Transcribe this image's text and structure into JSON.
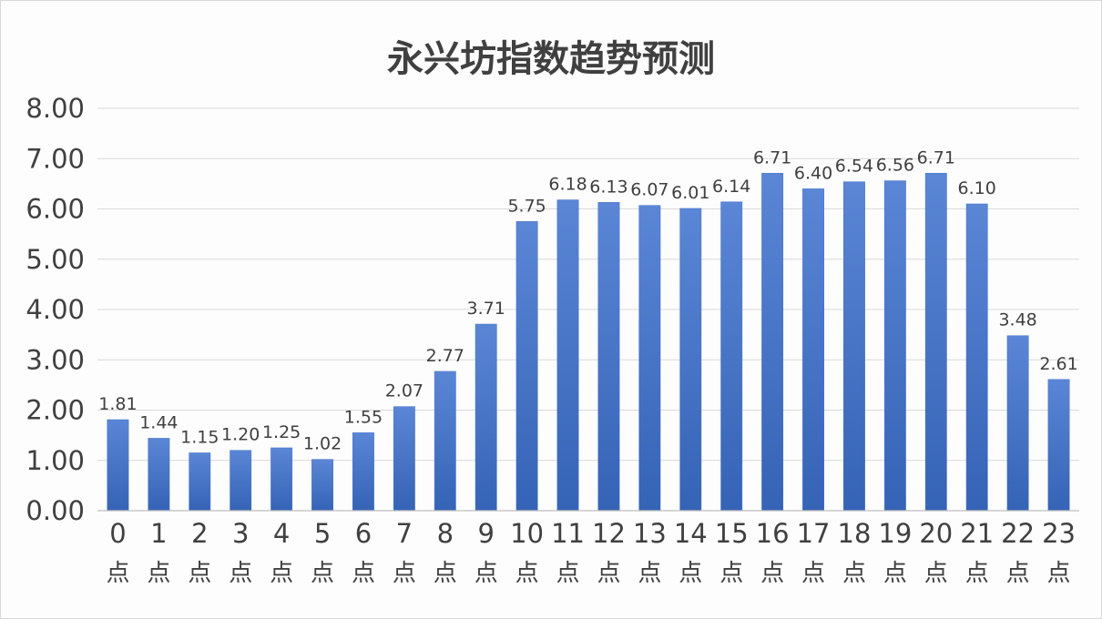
{
  "chart_data": {
    "type": "bar",
    "title": "永兴坊指数趋势预测",
    "xlabel": "",
    "ylabel": "",
    "ylim": [
      0,
      8
    ],
    "yticks": [
      "0.00",
      "1.00",
      "2.00",
      "3.00",
      "4.00",
      "5.00",
      "6.00",
      "7.00",
      "8.00"
    ],
    "categories": [
      "0",
      "1",
      "2",
      "3",
      "4",
      "5",
      "6",
      "7",
      "8",
      "9",
      "10",
      "11",
      "12",
      "13",
      "14",
      "15",
      "16",
      "17",
      "18",
      "19",
      "20",
      "21",
      "22",
      "23"
    ],
    "category_unit": "点",
    "values": [
      1.81,
      1.44,
      1.15,
      1.2,
      1.25,
      1.02,
      1.55,
      2.07,
      2.77,
      3.71,
      5.75,
      6.18,
      6.13,
      6.07,
      6.01,
      6.14,
      6.71,
      6.4,
      6.54,
      6.56,
      6.71,
      6.1,
      3.48,
      2.61
    ],
    "value_labels": [
      "1.81",
      "1.44",
      "1.15",
      "1.20",
      "1.25",
      "1.02",
      "1.55",
      "2.07",
      "2.77",
      "3.71",
      "5.75",
      "6.18",
      "6.13",
      "6.07",
      "6.01",
      "6.14",
      "6.71",
      "6.40",
      "6.54",
      "6.56",
      "6.71",
      "6.10",
      "3.48",
      "2.61"
    ],
    "bar_color": "#4472c4",
    "grid": true,
    "legend": "none"
  }
}
